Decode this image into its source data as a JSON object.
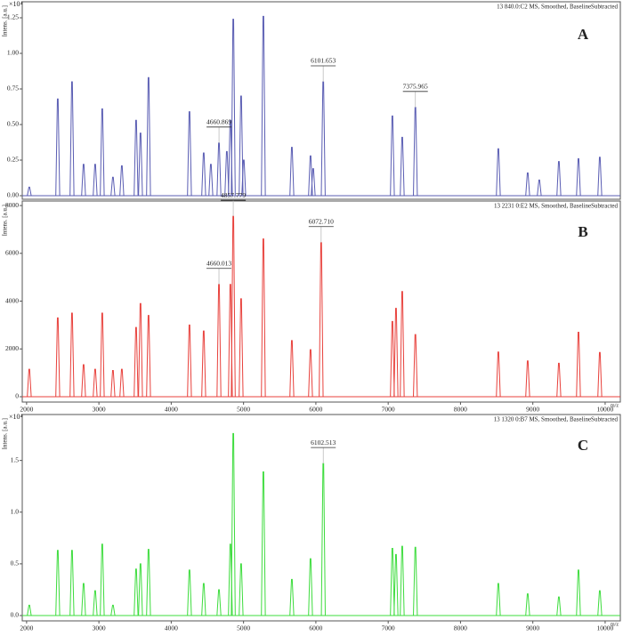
{
  "chart_data": [
    {
      "type": "spectrum",
      "title": "13 840.0:C2 MS, Smoothed, BaselineSubtracted",
      "panel_label": "A",
      "ylabel": "Intens. [a.u.]",
      "scale_label": "×10⁴",
      "color": "#5a5db3",
      "x": [
        2037,
        2431,
        2628,
        2788,
        2948,
        3046,
        3194,
        3317,
        3514,
        3575,
        3686,
        4252,
        4449,
        4548,
        4660,
        4769,
        4818,
        4858,
        4966,
        5003,
        5274,
        5668,
        5926,
        5963,
        6102,
        7058,
        7194,
        7376,
        8523,
        8929,
        9089,
        9360,
        9631,
        9926
      ],
      "values": [
        0.06,
        0.68,
        0.8,
        0.22,
        0.22,
        0.61,
        0.13,
        0.21,
        0.53,
        0.44,
        0.83,
        0.59,
        0.3,
        0.22,
        0.37,
        0.31,
        0.53,
        1.24,
        0.7,
        0.25,
        1.26,
        0.34,
        0.28,
        0.19,
        0.8,
        0.56,
        0.41,
        0.62,
        0.33,
        0.16,
        0.11,
        0.24,
        0.26,
        0.27
      ],
      "xlim": [
        1940,
        10210
      ],
      "ylim": [
        0,
        1.325
      ],
      "yticks": [
        {
          "value": 0,
          "label": "0.00"
        },
        0.25,
        {
          "value": 0.5,
          "label": "0.50"
        },
        0.75,
        {
          "value": 1,
          "label": "1.00"
        },
        1.25
      ],
      "annotations": [
        {
          "value": 4660.869,
          "label": "4660.869"
        },
        {
          "value": 6101.653,
          "label": "6101.653"
        },
        {
          "value": 7375.965,
          "label": "7375.965"
        }
      ]
    },
    {
      "type": "spectrum",
      "title": "13 2231 0:E2 MS, Smoothed, BaselineSubtracted",
      "panel_label": "B",
      "ylabel": "Intens. [a.u.]",
      "xlabel": "m/z",
      "color": "#e8413c",
      "x": [
        2037,
        2431,
        2628,
        2788,
        2948,
        3046,
        3194,
        3317,
        3514,
        3575,
        3686,
        4252,
        4449,
        4660,
        4818,
        4858,
        4966,
        5274,
        5668,
        5926,
        6073,
        7058,
        7108,
        7194,
        7376,
        8523,
        8929,
        9360,
        9631,
        9926
      ],
      "values": [
        1150,
        3300,
        3500,
        1340,
        1150,
        3500,
        1100,
        1150,
        2900,
        3900,
        3400,
        3000,
        2750,
        4700,
        4700,
        7550,
        4100,
        6600,
        2350,
        1970,
        6450,
        3150,
        3700,
        4400,
        2600,
        1870,
        1500,
        1400,
        2700,
        1850
      ],
      "xlim": [
        1940,
        10210
      ],
      "ylim": [
        0,
        8040
      ],
      "yticks": [
        0,
        2000,
        4000,
        6000,
        8000
      ],
      "xticks": [
        2000,
        3000,
        4000,
        5000,
        6000,
        7000,
        8000,
        9000,
        10000
      ],
      "annotations": [
        {
          "value": 4660.013,
          "label": "4660.013"
        },
        {
          "value": 4857.779,
          "label": "4857.779"
        },
        {
          "value": 6072.71,
          "label": "6072.710"
        }
      ]
    },
    {
      "type": "spectrum",
      "title": "13 1320 0:B7 MS, Smoothed, BaselineSubtracted",
      "panel_label": "C",
      "ylabel": "Intens. [a.u.]",
      "scale_label": "×10⁴",
      "xlabel": "m/z",
      "color": "#3ddc3d",
      "x": [
        2037,
        2431,
        2628,
        2788,
        2948,
        3046,
        3194,
        3514,
        3575,
        3686,
        4252,
        4449,
        4660,
        4818,
        4858,
        4966,
        5274,
        5668,
        5926,
        6103,
        7058,
        7108,
        7194,
        7376,
        8523,
        8929,
        9360,
        9631,
        9926
      ],
      "values": [
        0.1,
        0.63,
        0.63,
        0.31,
        0.24,
        0.69,
        0.1,
        0.45,
        0.5,
        0.64,
        0.44,
        0.31,
        0.25,
        0.69,
        1.76,
        0.5,
        1.39,
        0.35,
        0.55,
        1.47,
        0.65,
        0.59,
        0.67,
        0.66,
        0.31,
        0.21,
        0.18,
        0.44,
        0.24
      ],
      "xlim": [
        1940,
        10210
      ],
      "ylim": [
        0,
        1.91
      ],
      "yticks": [
        {
          "value": 0,
          "label": "0.0"
        },
        0.5,
        {
          "value": 1,
          "label": "1.0"
        },
        1.5
      ],
      "xticks": [
        2000,
        3000,
        4000,
        5000,
        6000,
        7000,
        8000,
        9000,
        10000
      ],
      "annotations": [
        {
          "value": 6102.513,
          "label": "6102.513"
        }
      ]
    }
  ]
}
